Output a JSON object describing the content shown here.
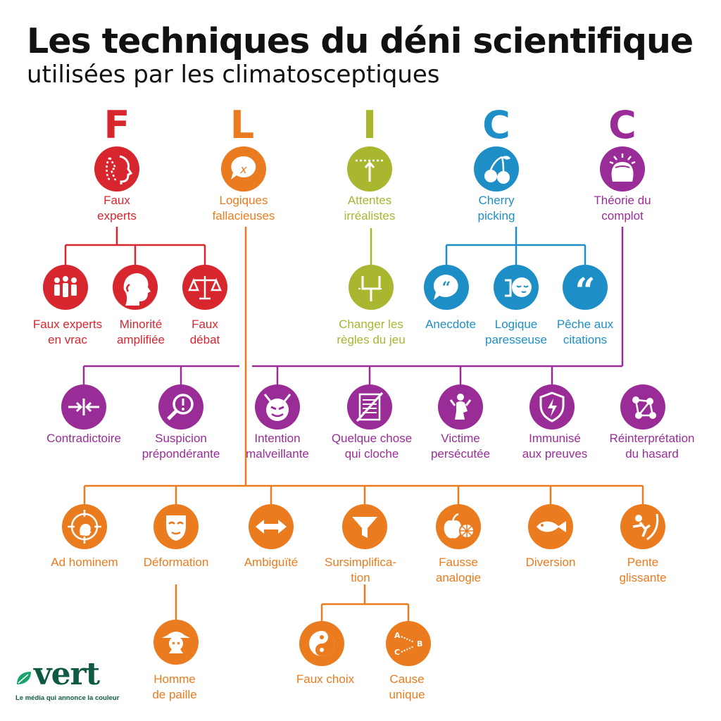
{
  "header": {
    "title": "Les techniques du déni scientifique",
    "subtitle": "utilisées par les climatosceptiques"
  },
  "colors": {
    "red": "#d7262e",
    "orange": "#ea7b1e",
    "green": "#a8b630",
    "blue": "#1e8fc6",
    "purple": "#9a2c97"
  },
  "letters": [
    "F",
    "L",
    "I",
    "C",
    "C"
  ],
  "categories": {
    "faux_experts": {
      "label": "Faux\nexperts",
      "icon": "faces-profile-icon"
    },
    "logiques_fallacieuses": {
      "label": "Logiques\nfallacieuses",
      "icon": "speech-bubble-x-icon"
    },
    "attentes_irrealistes": {
      "label": "Attentes\nirréalistes",
      "icon": "goalpost-arrow-icon"
    },
    "cherry_picking": {
      "label": "Cherry\npicking",
      "icon": "cherries-icon"
    },
    "theorie_du_complot": {
      "label": "Théorie du\ncomplot",
      "icon": "head-alert-icon"
    }
  },
  "faux_experts_children": [
    {
      "label": "Faux experts\nen vrac",
      "icon": "group-people-icon"
    },
    {
      "label": "Minorité\namplifiée",
      "icon": "large-head-small-face-icon"
    },
    {
      "label": "Faux\ndébat",
      "icon": "balance-scale-icon"
    }
  ],
  "attentes_children": [
    {
      "label": "Changer les\nrègles du jeu",
      "icon": "moved-goalpost-icon"
    }
  ],
  "cherry_children": [
    {
      "label": "Anecdote",
      "icon": "quote-bubble-icon"
    },
    {
      "label": "Logique\nparesseuse",
      "icon": "sleepy-face-icon"
    },
    {
      "label": "Pêche aux\ncitations",
      "icon": "quotation-marks-icon"
    }
  ],
  "complot_children": [
    {
      "label": "Contradictoire",
      "icon": "arrows-inward-icon"
    },
    {
      "label": "Suspicion\nprépondérante",
      "icon": "magnifier-exclamation-icon"
    },
    {
      "label": "Intention\nmalveillante",
      "icon": "devil-face-icon"
    },
    {
      "label": "Quelque chose\nqui cloche",
      "icon": "crossed-document-icon"
    },
    {
      "label": "Victime\npersécutée",
      "icon": "kneeling-person-icon"
    },
    {
      "label": "Immunisé\naux preuves",
      "icon": "shield-lightning-icon"
    },
    {
      "label": "Réinterprétation\ndu hasard",
      "icon": "connected-dots-icon"
    }
  ],
  "logiques_children": [
    {
      "label": "Ad hominem",
      "icon": "target-head-icon"
    },
    {
      "label": "Déformation",
      "icon": "mask-icon"
    },
    {
      "label": "Ambiguïté",
      "icon": "double-arrow-icon"
    },
    {
      "label": "Sursimplifica-\ntion",
      "icon": "funnel-icon"
    },
    {
      "label": "Fausse\nanalogie",
      "icon": "apple-orange-icon"
    },
    {
      "label": "Diversion",
      "icon": "fish-icon"
    },
    {
      "label": "Pente\nglissante",
      "icon": "sliding-person-icon"
    }
  ],
  "deformation_children": [
    {
      "label": "Homme\nde paille",
      "icon": "scarecrow-icon"
    }
  ],
  "sursimplification_children": [
    {
      "label": "Faux choix",
      "icon": "yin-yang-icon"
    },
    {
      "label": "Cause\nunique",
      "icon": "abc-arrows-icon"
    }
  ],
  "brand": {
    "name": "vert",
    "tagline": "Le média qui annonce la couleur"
  }
}
